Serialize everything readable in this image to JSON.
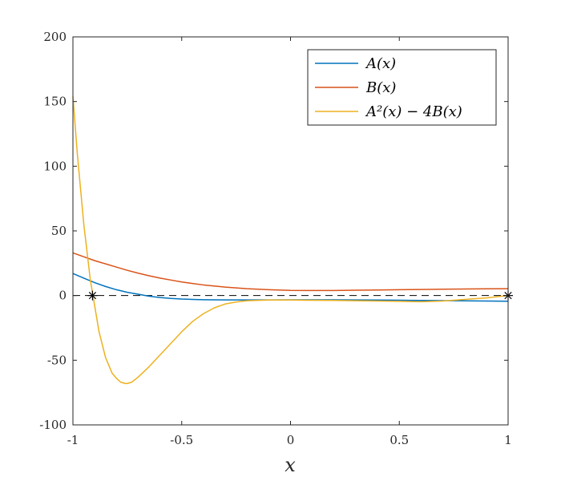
{
  "chart_data": {
    "type": "line",
    "xlabel": "x",
    "ylabel": "",
    "xlim": [
      -1,
      1
    ],
    "ylim": [
      -100,
      200
    ],
    "xticks": [
      -1,
      -0.5,
      0,
      0.5,
      1
    ],
    "xtick_labels": [
      "-1",
      "-0.5",
      "0",
      "0.5",
      "1"
    ],
    "yticks": [
      -100,
      -50,
      0,
      50,
      100,
      150,
      200
    ],
    "ytick_labels": [
      "-100",
      "-50",
      "0",
      "50",
      "100",
      "150",
      "200"
    ],
    "grid": false,
    "legend_position": "top-right",
    "legend": [
      "A(x)",
      "B(x)",
      "A²(x) − 4B(x)"
    ],
    "series": [
      {
        "name": "A(x)",
        "color": "#0072BD",
        "x": [
          -1,
          -0.95,
          -0.9,
          -0.85,
          -0.8,
          -0.75,
          -0.7,
          -0.65,
          -0.6,
          -0.55,
          -0.5,
          -0.45,
          -0.4,
          -0.3,
          -0.2,
          -0.1,
          0,
          0.1,
          0.2,
          0.3,
          0.4,
          0.5,
          0.6,
          0.7,
          0.8,
          0.9,
          1
        ],
        "y": [
          17,
          13.5,
          10,
          7,
          4.5,
          2.5,
          1,
          -0.5,
          -1.5,
          -2.2,
          -2.7,
          -3,
          -3.2,
          -3.4,
          -3.4,
          -3.4,
          -3.3,
          -3.3,
          -3.3,
          -3.4,
          -3.5,
          -3.6,
          -3.8,
          -3.9,
          -4.1,
          -4.2,
          -4.4
        ]
      },
      {
        "name": "B(x)",
        "color": "#D95319",
        "x": [
          -1,
          -0.95,
          -0.9,
          -0.85,
          -0.8,
          -0.75,
          -0.7,
          -0.65,
          -0.6,
          -0.55,
          -0.5,
          -0.45,
          -0.4,
          -0.3,
          -0.2,
          -0.1,
          0,
          0.1,
          0.2,
          0.3,
          0.4,
          0.5,
          0.6,
          0.7,
          0.8,
          0.9,
          1
        ],
        "y": [
          33,
          30,
          27,
          24.5,
          22,
          19.5,
          17.3,
          15.3,
          13.5,
          12,
          10.5,
          9.3,
          8.2,
          6.5,
          5.3,
          4.5,
          4,
          3.9,
          3.9,
          4.1,
          4.3,
          4.5,
          4.7,
          4.9,
          5.1,
          5.2,
          5.3
        ]
      },
      {
        "name": "A²(x) − 4B(x)",
        "color": "#EDB120",
        "x": [
          -1,
          -0.98,
          -0.95,
          -0.92,
          -0.9,
          -0.88,
          -0.85,
          -0.82,
          -0.8,
          -0.78,
          -0.76,
          -0.75,
          -0.73,
          -0.7,
          -0.65,
          -0.6,
          -0.55,
          -0.5,
          -0.45,
          -0.4,
          -0.35,
          -0.3,
          -0.25,
          -0.2,
          -0.1,
          0,
          0.2,
          0.4,
          0.5,
          0.6,
          0.7,
          0.8,
          0.9,
          1
        ],
        "y": [
          154,
          110,
          55,
          12,
          -8,
          -28,
          -48,
          -60,
          -64,
          -67,
          -68,
          -68,
          -67,
          -63,
          -55,
          -46,
          -37,
          -28,
          -20,
          -14,
          -9.5,
          -6.5,
          -5,
          -4,
          -3.5,
          -3.5,
          -3.8,
          -4.2,
          -4.5,
          -4.8,
          -4.2,
          -3,
          -1.8,
          0
        ]
      }
    ],
    "reference_line": {
      "y": 0,
      "style": "dashed",
      "color": "#000000"
    },
    "markers": [
      {
        "x": -0.91,
        "y": 0,
        "symbol": "asterisk"
      },
      {
        "x": 1,
        "y": 0,
        "symbol": "asterisk"
      }
    ]
  }
}
